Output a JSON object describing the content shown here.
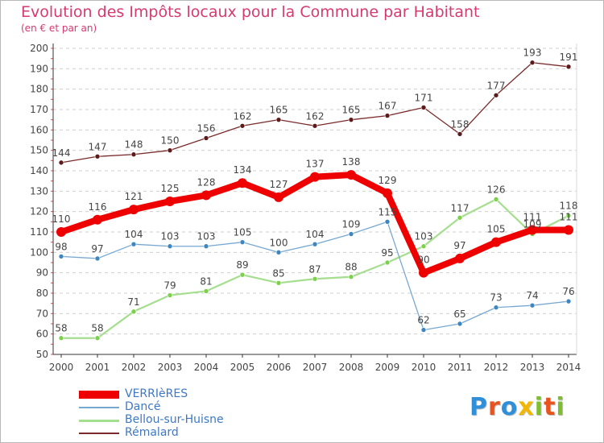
{
  "chart_data": {
    "type": "line",
    "title": "Evolution des Impôts locaux pour la Commune par Habitant",
    "subtitle": "(en € et par an)",
    "xlabel": "",
    "ylabel": "",
    "ylim": [
      50,
      200
    ],
    "yticks": [
      50,
      60,
      70,
      80,
      90,
      100,
      110,
      120,
      130,
      140,
      150,
      160,
      170,
      180,
      190,
      200
    ],
    "x": [
      "2000",
      "2001",
      "2002",
      "2003",
      "2004",
      "2005",
      "2006",
      "2007",
      "2008",
      "2009",
      "2010",
      "2011",
      "2012",
      "2013",
      "2014"
    ],
    "grid": "horizontal dashed",
    "legend_position": "bottom-left",
    "series": [
      {
        "name": "Rémalard",
        "color": "#7a2a2a",
        "marker": "#5c1a1a",
        "width": "thin",
        "values": [
          144,
          147,
          148,
          150,
          156,
          162,
          165,
          162,
          165,
          167,
          171,
          158,
          177,
          193,
          191
        ]
      },
      {
        "name": "Bellou-sur-Huisne",
        "color": "#a4de8e",
        "marker": "#7cd04a",
        "width": "medium",
        "values": [
          58,
          58,
          71,
          79,
          81,
          89,
          85,
          87,
          88,
          95,
          103,
          117,
          126,
          109,
          118
        ]
      },
      {
        "name": "Dancé",
        "color": "#76a8d2",
        "marker": "#3e86c0",
        "width": "thin",
        "values": [
          98,
          97,
          104,
          103,
          103,
          105,
          100,
          104,
          109,
          115,
          62,
          65,
          73,
          74,
          76
        ]
      },
      {
        "name": "VERRIèRES",
        "color": "#ee0000",
        "marker": "#ee0000",
        "width": "thick",
        "values": [
          110,
          116,
          121,
          125,
          128,
          134,
          127,
          137,
          138,
          129,
          90,
          97,
          105,
          111,
          111
        ]
      }
    ]
  },
  "legend": [
    {
      "name": "VERRIèRES",
      "color": "#ee0000"
    },
    {
      "name": "Dancé",
      "color": "#76a8d2"
    },
    {
      "name": "Bellou-sur-Huisne",
      "color": "#a4de8e"
    },
    {
      "name": "Rémalard",
      "color": "#7a2a2a"
    }
  ],
  "logo": {
    "letters": [
      "P",
      "r",
      "o",
      "x",
      "i",
      "t",
      "i"
    ],
    "colors": [
      "#2f8fd8",
      "#e9541e",
      "#2f8fd8",
      "#f2b705",
      "#7fbf2f",
      "#e9541e",
      "#7fbf2f"
    ]
  }
}
